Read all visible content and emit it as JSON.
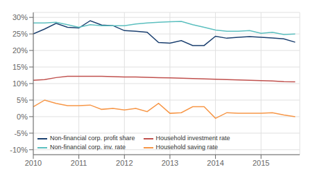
{
  "chart_data": {
    "type": "line",
    "x": [
      2010.0,
      2010.25,
      2010.5,
      2010.75,
      2011.0,
      2011.25,
      2011.5,
      2011.75,
      2012.0,
      2012.25,
      2012.5,
      2012.75,
      2013.0,
      2013.25,
      2013.5,
      2013.75,
      2014.0,
      2014.25,
      2014.5,
      2014.75,
      2015.0,
      2015.25,
      2015.5,
      2015.75
    ],
    "series": [
      {
        "name": "Non-financial corp. profit share",
        "color": "#1a3f6f",
        "values": [
          0.25,
          0.265,
          0.282,
          0.27,
          0.268,
          0.29,
          0.277,
          0.275,
          0.26,
          0.258,
          0.255,
          0.224,
          0.222,
          0.23,
          0.215,
          0.215,
          0.243,
          0.237,
          0.24,
          0.242,
          0.24,
          0.238,
          0.235,
          0.225
        ]
      },
      {
        "name": "Household investment rate",
        "color": "#c0504d",
        "values": [
          0.11,
          0.112,
          0.118,
          0.122,
          0.122,
          0.122,
          0.122,
          0.121,
          0.12,
          0.12,
          0.119,
          0.118,
          0.117,
          0.116,
          0.115,
          0.114,
          0.113,
          0.112,
          0.111,
          0.11,
          0.109,
          0.108,
          0.106,
          0.105
        ]
      },
      {
        "name": "Non-financial corp. inv. rate",
        "color": "#5bbfbf",
        "values": [
          0.283,
          0.283,
          0.285,
          0.278,
          0.27,
          0.278,
          0.275,
          0.275,
          0.275,
          0.28,
          0.283,
          0.285,
          0.287,
          0.288,
          0.278,
          0.27,
          0.262,
          0.258,
          0.258,
          0.26,
          0.252,
          0.255,
          0.248,
          0.25
        ]
      },
      {
        "name": "Household saving rate",
        "color": "#f79646",
        "values": [
          0.03,
          0.05,
          0.04,
          0.033,
          0.033,
          0.035,
          0.022,
          0.025,
          0.02,
          0.025,
          0.015,
          0.04,
          0.01,
          0.012,
          0.03,
          0.03,
          -0.005,
          0.012,
          0.01,
          0.01,
          0.01,
          0.012,
          0.005,
          0.0
        ]
      }
    ],
    "xlim": [
      2010,
      2015.85
    ],
    "ylim": [
      -0.115,
      0.315
    ],
    "xticks": [
      2010,
      2011,
      2012,
      2013,
      2014,
      2015
    ],
    "yticks": [
      {
        "value": -0.1,
        "label": "-10%"
      },
      {
        "value": -0.05,
        "label": "-5%"
      },
      {
        "value": 0.0,
        "label": "0%"
      },
      {
        "value": 0.05,
        "label": "5%"
      },
      {
        "value": 0.1,
        "label": "10%"
      },
      {
        "value": 0.15,
        "label": "15%"
      },
      {
        "value": 0.2,
        "label": "20%"
      },
      {
        "value": 0.25,
        "label": "25%"
      },
      {
        "value": 0.3,
        "label": "30%"
      }
    ],
    "grid": true,
    "legend": "lower left"
  }
}
